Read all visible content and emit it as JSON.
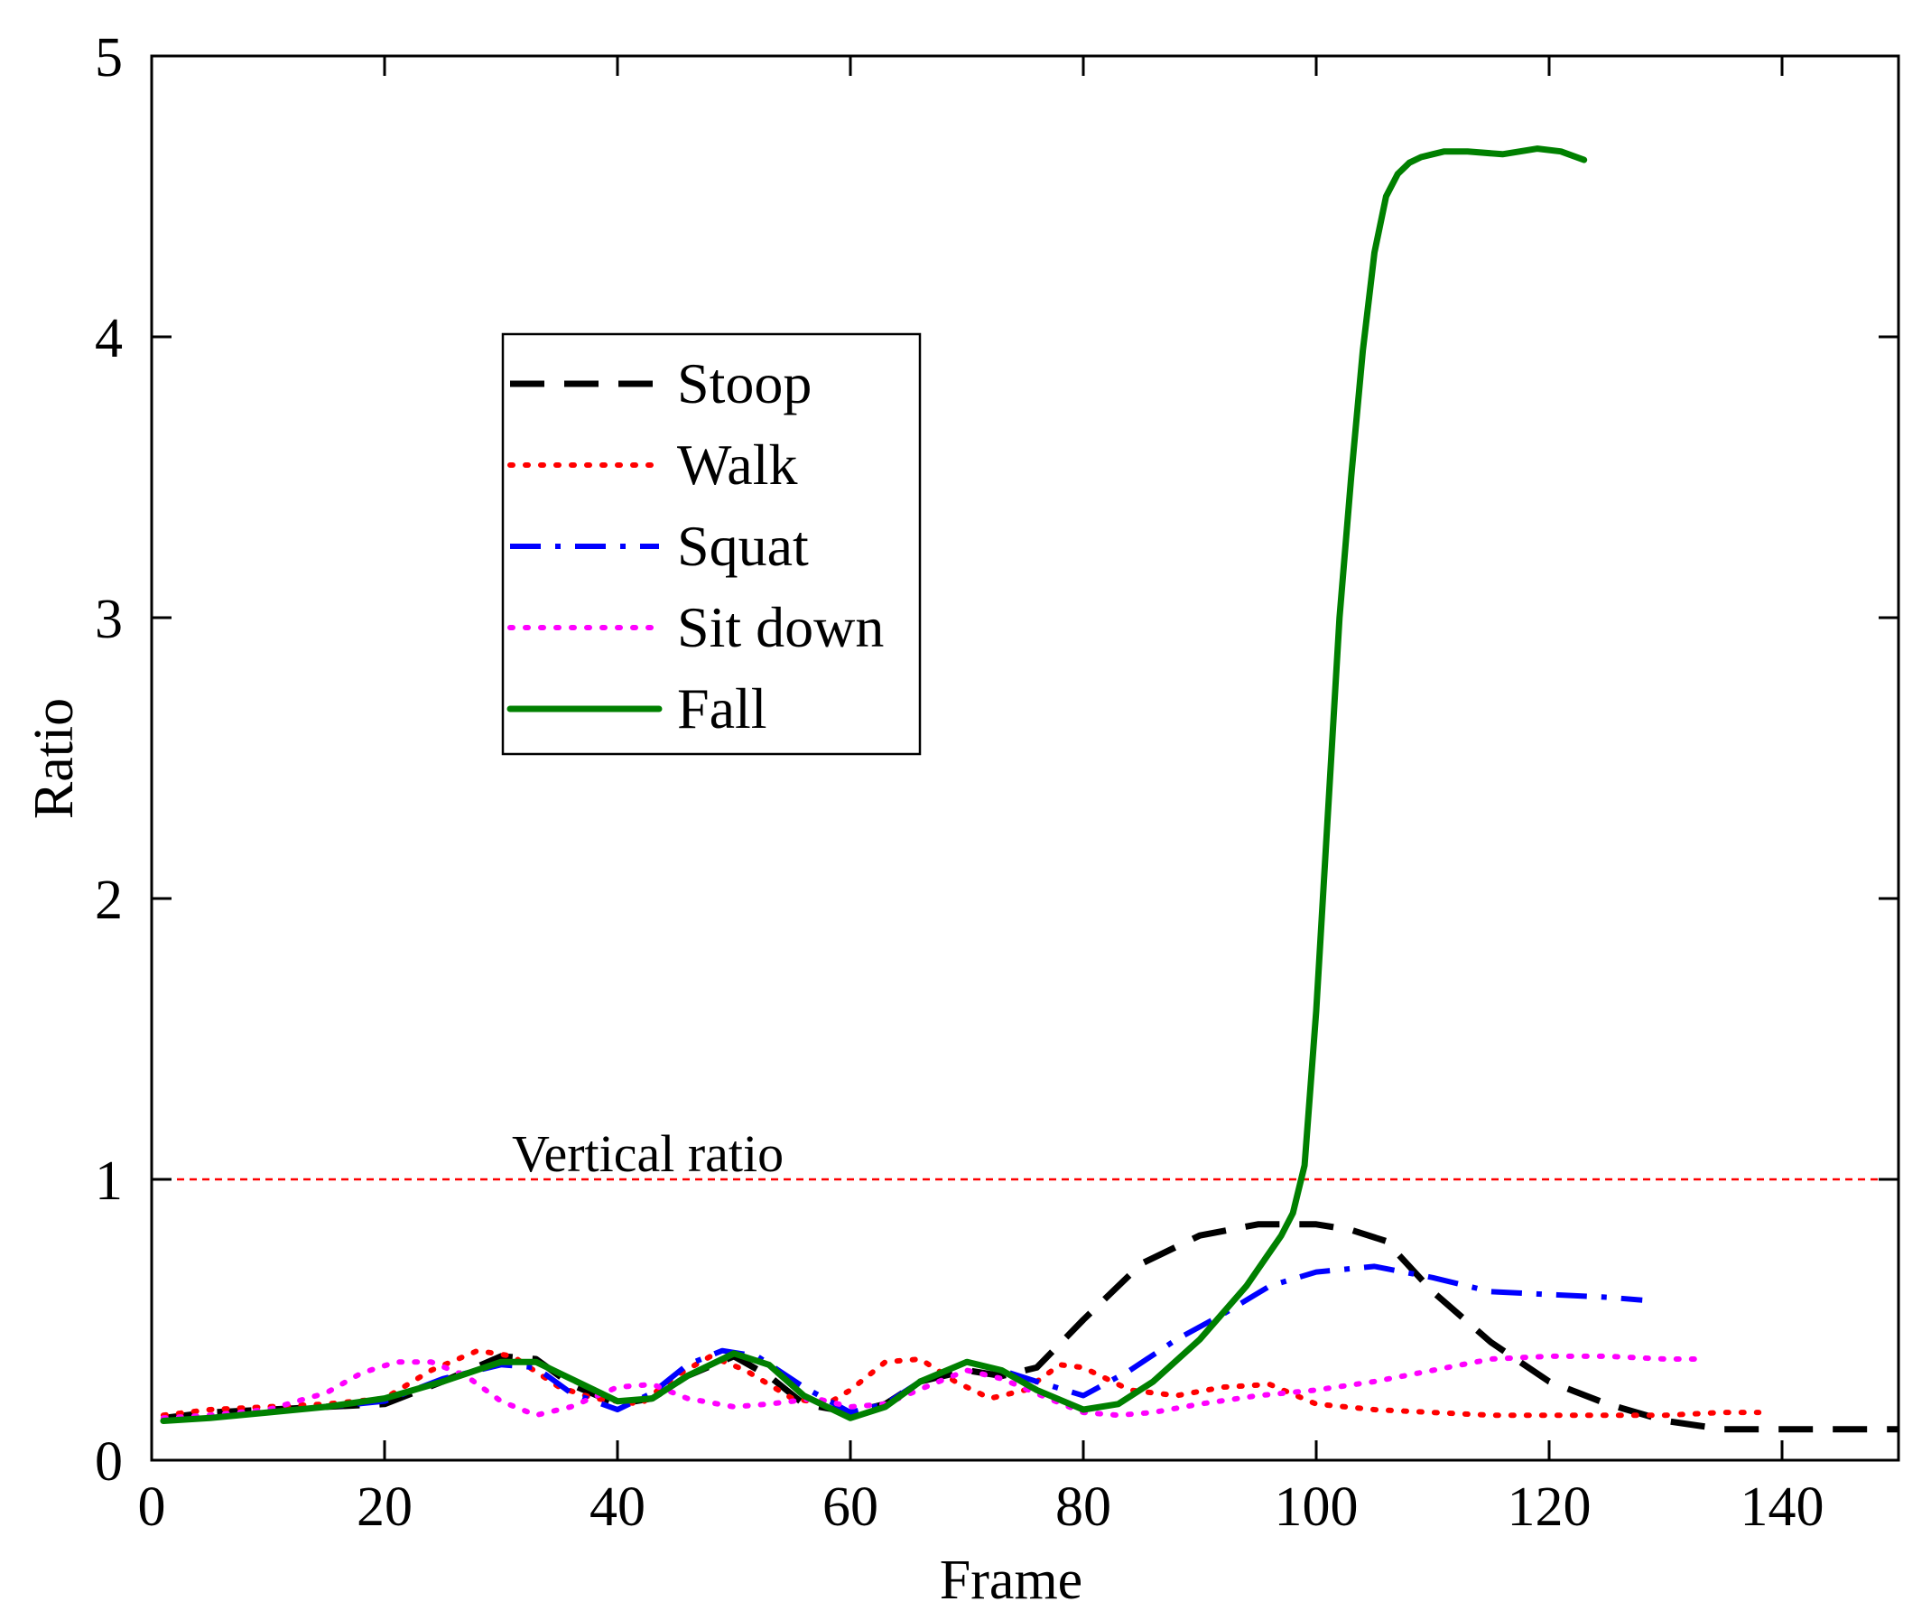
{
  "chart_data": {
    "type": "line",
    "xlabel": "Frame",
    "ylabel": "Ratio",
    "xlim": [
      0,
      150
    ],
    "ylim": [
      0,
      5
    ],
    "xticks": [
      0,
      20,
      40,
      60,
      80,
      100,
      120,
      140
    ],
    "yticks": [
      0,
      1,
      2,
      3,
      4,
      5
    ],
    "grid": false,
    "legend_position": "upper-left-center",
    "annotations": [
      {
        "text": "Vertical ratio",
        "y": 1.0
      }
    ],
    "reference_line": {
      "y": 1.0,
      "color": "#ff0000",
      "style": "dashed"
    },
    "series": [
      {
        "name": "Stoop",
        "color": "#000000",
        "style": "dashed",
        "x": [
          1,
          5,
          10,
          15,
          20,
          25,
          30,
          33,
          36,
          40,
          43,
          46,
          50,
          53,
          56,
          60,
          63,
          66,
          70,
          73,
          76,
          80,
          85,
          90,
          95,
          100,
          103,
          106,
          110,
          115,
          120,
          125,
          130,
          135,
          140,
          145,
          150
        ],
        "y": [
          0.15,
          0.17,
          0.18,
          0.19,
          0.2,
          0.28,
          0.37,
          0.36,
          0.27,
          0.2,
          0.22,
          0.3,
          0.37,
          0.3,
          0.2,
          0.17,
          0.2,
          0.28,
          0.32,
          0.3,
          0.33,
          0.5,
          0.7,
          0.8,
          0.84,
          0.84,
          0.82,
          0.78,
          0.6,
          0.42,
          0.28,
          0.2,
          0.14,
          0.11,
          0.11,
          0.11,
          0.11
        ]
      },
      {
        "name": "Walk",
        "color": "#ff0000",
        "style": "dotted",
        "x": [
          1,
          5,
          10,
          15,
          20,
          24,
          28,
          31,
          35,
          38,
          42,
          45,
          48,
          51,
          55,
          58,
          60,
          63,
          66,
          69,
          72,
          75,
          78,
          80,
          84,
          88,
          92,
          96,
          100,
          105,
          110,
          115,
          120,
          125,
          130,
          135,
          138
        ],
        "y": [
          0.16,
          0.18,
          0.19,
          0.2,
          0.22,
          0.32,
          0.39,
          0.37,
          0.26,
          0.22,
          0.2,
          0.3,
          0.37,
          0.32,
          0.22,
          0.2,
          0.25,
          0.35,
          0.36,
          0.28,
          0.22,
          0.25,
          0.34,
          0.33,
          0.25,
          0.23,
          0.26,
          0.27,
          0.2,
          0.18,
          0.17,
          0.16,
          0.16,
          0.16,
          0.16,
          0.17,
          0.17
        ]
      },
      {
        "name": "Squat",
        "color": "#0000ff",
        "style": "dashdot",
        "x": [
          1,
          5,
          10,
          15,
          20,
          25,
          30,
          33,
          36,
          40,
          43,
          46,
          49,
          52,
          56,
          60,
          63,
          66,
          70,
          73,
          76,
          80,
          84,
          88,
          92,
          96,
          100,
          105,
          110,
          115,
          120,
          125,
          128
        ],
        "y": [
          0.14,
          0.15,
          0.17,
          0.19,
          0.21,
          0.29,
          0.34,
          0.33,
          0.24,
          0.18,
          0.24,
          0.34,
          0.39,
          0.37,
          0.26,
          0.17,
          0.2,
          0.28,
          0.35,
          0.32,
          0.28,
          0.23,
          0.32,
          0.43,
          0.52,
          0.62,
          0.67,
          0.69,
          0.65,
          0.6,
          0.59,
          0.58,
          0.57
        ]
      },
      {
        "name": "Sit down",
        "color": "#ff00ff",
        "style": "dotted",
        "x": [
          1,
          5,
          10,
          15,
          18,
          21,
          24,
          27,
          30,
          33,
          36,
          40,
          43,
          46,
          50,
          53,
          57,
          60,
          63,
          67,
          70,
          73,
          77,
          80,
          83,
          86,
          90,
          95,
          100,
          105,
          110,
          115,
          120,
          125,
          130,
          133
        ],
        "y": [
          0.15,
          0.16,
          0.18,
          0.24,
          0.31,
          0.35,
          0.35,
          0.3,
          0.21,
          0.16,
          0.19,
          0.26,
          0.27,
          0.22,
          0.19,
          0.2,
          0.22,
          0.19,
          0.2,
          0.27,
          0.32,
          0.29,
          0.22,
          0.17,
          0.16,
          0.17,
          0.2,
          0.23,
          0.25,
          0.28,
          0.32,
          0.36,
          0.37,
          0.37,
          0.36,
          0.36
        ]
      },
      {
        "name": "Fall",
        "color": "#008000",
        "style": "solid",
        "x": [
          1,
          5,
          10,
          15,
          20,
          25,
          30,
          33,
          36,
          40,
          43,
          46,
          50,
          53,
          56,
          60,
          63,
          66,
          70,
          73,
          76,
          80,
          83,
          86,
          90,
          94,
          97,
          98,
          99,
          100,
          101,
          102,
          103,
          104,
          105,
          106,
          107,
          108,
          109,
          110,
          111,
          113,
          116,
          119,
          121,
          123
        ],
        "y": [
          0.14,
          0.15,
          0.17,
          0.19,
          0.22,
          0.28,
          0.35,
          0.35,
          0.29,
          0.21,
          0.22,
          0.3,
          0.38,
          0.34,
          0.23,
          0.15,
          0.19,
          0.28,
          0.35,
          0.32,
          0.25,
          0.18,
          0.2,
          0.28,
          0.43,
          0.62,
          0.8,
          0.88,
          1.05,
          1.6,
          2.3,
          3.0,
          3.5,
          3.95,
          4.3,
          4.5,
          4.58,
          4.62,
          4.64,
          4.65,
          4.66,
          4.66,
          4.65,
          4.67,
          4.66,
          4.63
        ]
      }
    ]
  }
}
